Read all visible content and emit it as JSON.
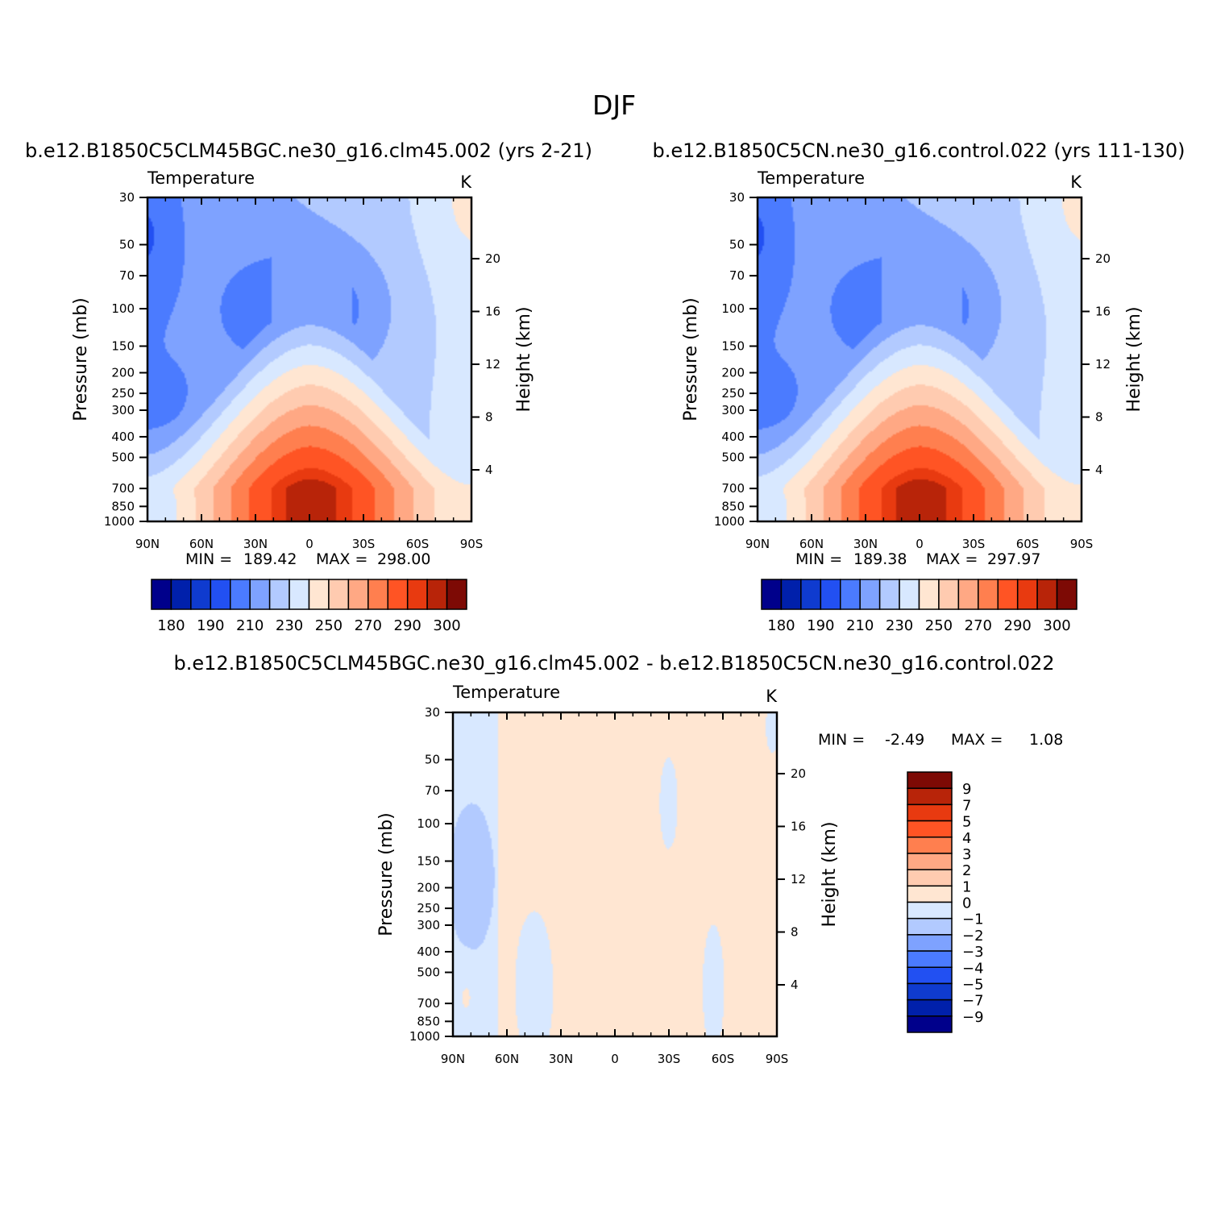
{
  "figure": {
    "title": "DJF"
  },
  "panels": [
    {
      "id": "panel1",
      "run_title": "b.e12.B1850C5CLM45BGC.ne30_g16.clm45.002 (yrs 2-21)",
      "variable": "Temperature",
      "units": "K",
      "left_axis_label": "Pressure (mb)",
      "right_axis_label": "Height (km)",
      "min_label": "MIN =",
      "min_value": "189.42",
      "max_label": "MAX =",
      "max_value": "298.00"
    },
    {
      "id": "panel2",
      "run_title": "b.e12.B1850C5CN.ne30_g16.control.022 (yrs 111-130)",
      "variable": "Temperature",
      "units": "K",
      "left_axis_label": "Pressure (mb)",
      "right_axis_label": "Height (km)",
      "min_label": "MIN =",
      "min_value": "189.38",
      "max_label": "MAX =",
      "max_value": "297.97"
    },
    {
      "id": "panel3",
      "run_title": "b.e12.B1850C5CLM45BGC.ne30_g16.clm45.002 - b.e12.B1850C5CN.ne30_g16.control.022",
      "variable": "Temperature",
      "units": "K",
      "left_axis_label": "Pressure (mb)",
      "right_axis_label": "Height (km)",
      "min_label": "MIN =",
      "min_value": "-2.49",
      "max_label": "MAX =",
      "max_value": "1.08"
    }
  ],
  "chart_data": [
    {
      "type": "heatmap",
      "title": "Temperature",
      "units": "K",
      "xlabel": "",
      "ylabel": "Pressure (mb)",
      "ylabel_right": "Height (km)",
      "x_ticks": [
        "90N",
        "60N",
        "30N",
        "0",
        "30S",
        "60S",
        "90S"
      ],
      "y_ticks": [
        "30",
        "50",
        "70",
        "100",
        "150",
        "200",
        "250",
        "300",
        "400",
        "500",
        "700",
        "850",
        "1000"
      ],
      "y_scale": "log",
      "y_right_ticks": [
        "4",
        "8",
        "12",
        "16",
        "20"
      ],
      "levels": [
        180,
        185,
        190,
        200,
        210,
        220,
        230,
        240,
        250,
        260,
        270,
        280,
        290,
        295,
        300
      ],
      "colorbar_labels": [
        "180",
        "190",
        "210",
        "230",
        "250",
        "270",
        "290",
        "300"
      ],
      "min": 189.42,
      "max": 298.0
    },
    {
      "type": "heatmap",
      "title": "Temperature",
      "units": "K",
      "xlabel": "",
      "ylabel": "Pressure (mb)",
      "ylabel_right": "Height (km)",
      "x_ticks": [
        "90N",
        "60N",
        "30N",
        "0",
        "30S",
        "60S",
        "90S"
      ],
      "y_ticks": [
        "30",
        "50",
        "70",
        "100",
        "150",
        "200",
        "250",
        "300",
        "400",
        "500",
        "700",
        "850",
        "1000"
      ],
      "y_scale": "log",
      "y_right_ticks": [
        "4",
        "8",
        "12",
        "16",
        "20"
      ],
      "levels": [
        180,
        185,
        190,
        200,
        210,
        220,
        230,
        240,
        250,
        260,
        270,
        280,
        290,
        295,
        300
      ],
      "colorbar_labels": [
        "180",
        "190",
        "210",
        "230",
        "250",
        "270",
        "290",
        "300"
      ],
      "min": 189.38,
      "max": 297.97
    },
    {
      "type": "heatmap",
      "title": "Temperature",
      "units": "K",
      "xlabel": "",
      "ylabel": "Pressure (mb)",
      "ylabel_right": "Height (km)",
      "x_ticks": [
        "90N",
        "60N",
        "30N",
        "0",
        "30S",
        "60S",
        "90S"
      ],
      "y_ticks": [
        "30",
        "50",
        "70",
        "100",
        "150",
        "200",
        "250",
        "300",
        "400",
        "500",
        "700",
        "850",
        "1000"
      ],
      "y_scale": "log",
      "y_right_ticks": [
        "4",
        "8",
        "12",
        "16",
        "20"
      ],
      "levels": [
        -9,
        -7,
        -5,
        -4,
        -3,
        -2,
        -1,
        0,
        1,
        2,
        3,
        4,
        5,
        7,
        9
      ],
      "colorbar_labels": [
        "9",
        "7",
        "5",
        "4",
        "3",
        "2",
        "1",
        "0",
        "−1",
        "−2",
        "−3",
        "−4",
        "−5",
        "−7",
        "−9"
      ],
      "min": -2.49,
      "max": 1.08
    }
  ],
  "palette": [
    "#00008b",
    "#0020ab",
    "#0f3bcf",
    "#2250f2",
    "#4b7bff",
    "#7ea2ff",
    "#b2caff",
    "#d8e8ff",
    "#ffe6d2",
    "#ffcbb0",
    "#ffa884",
    "#ff7f4f",
    "#ff5424",
    "#e83a10",
    "#b82409",
    "#7d0a05"
  ]
}
